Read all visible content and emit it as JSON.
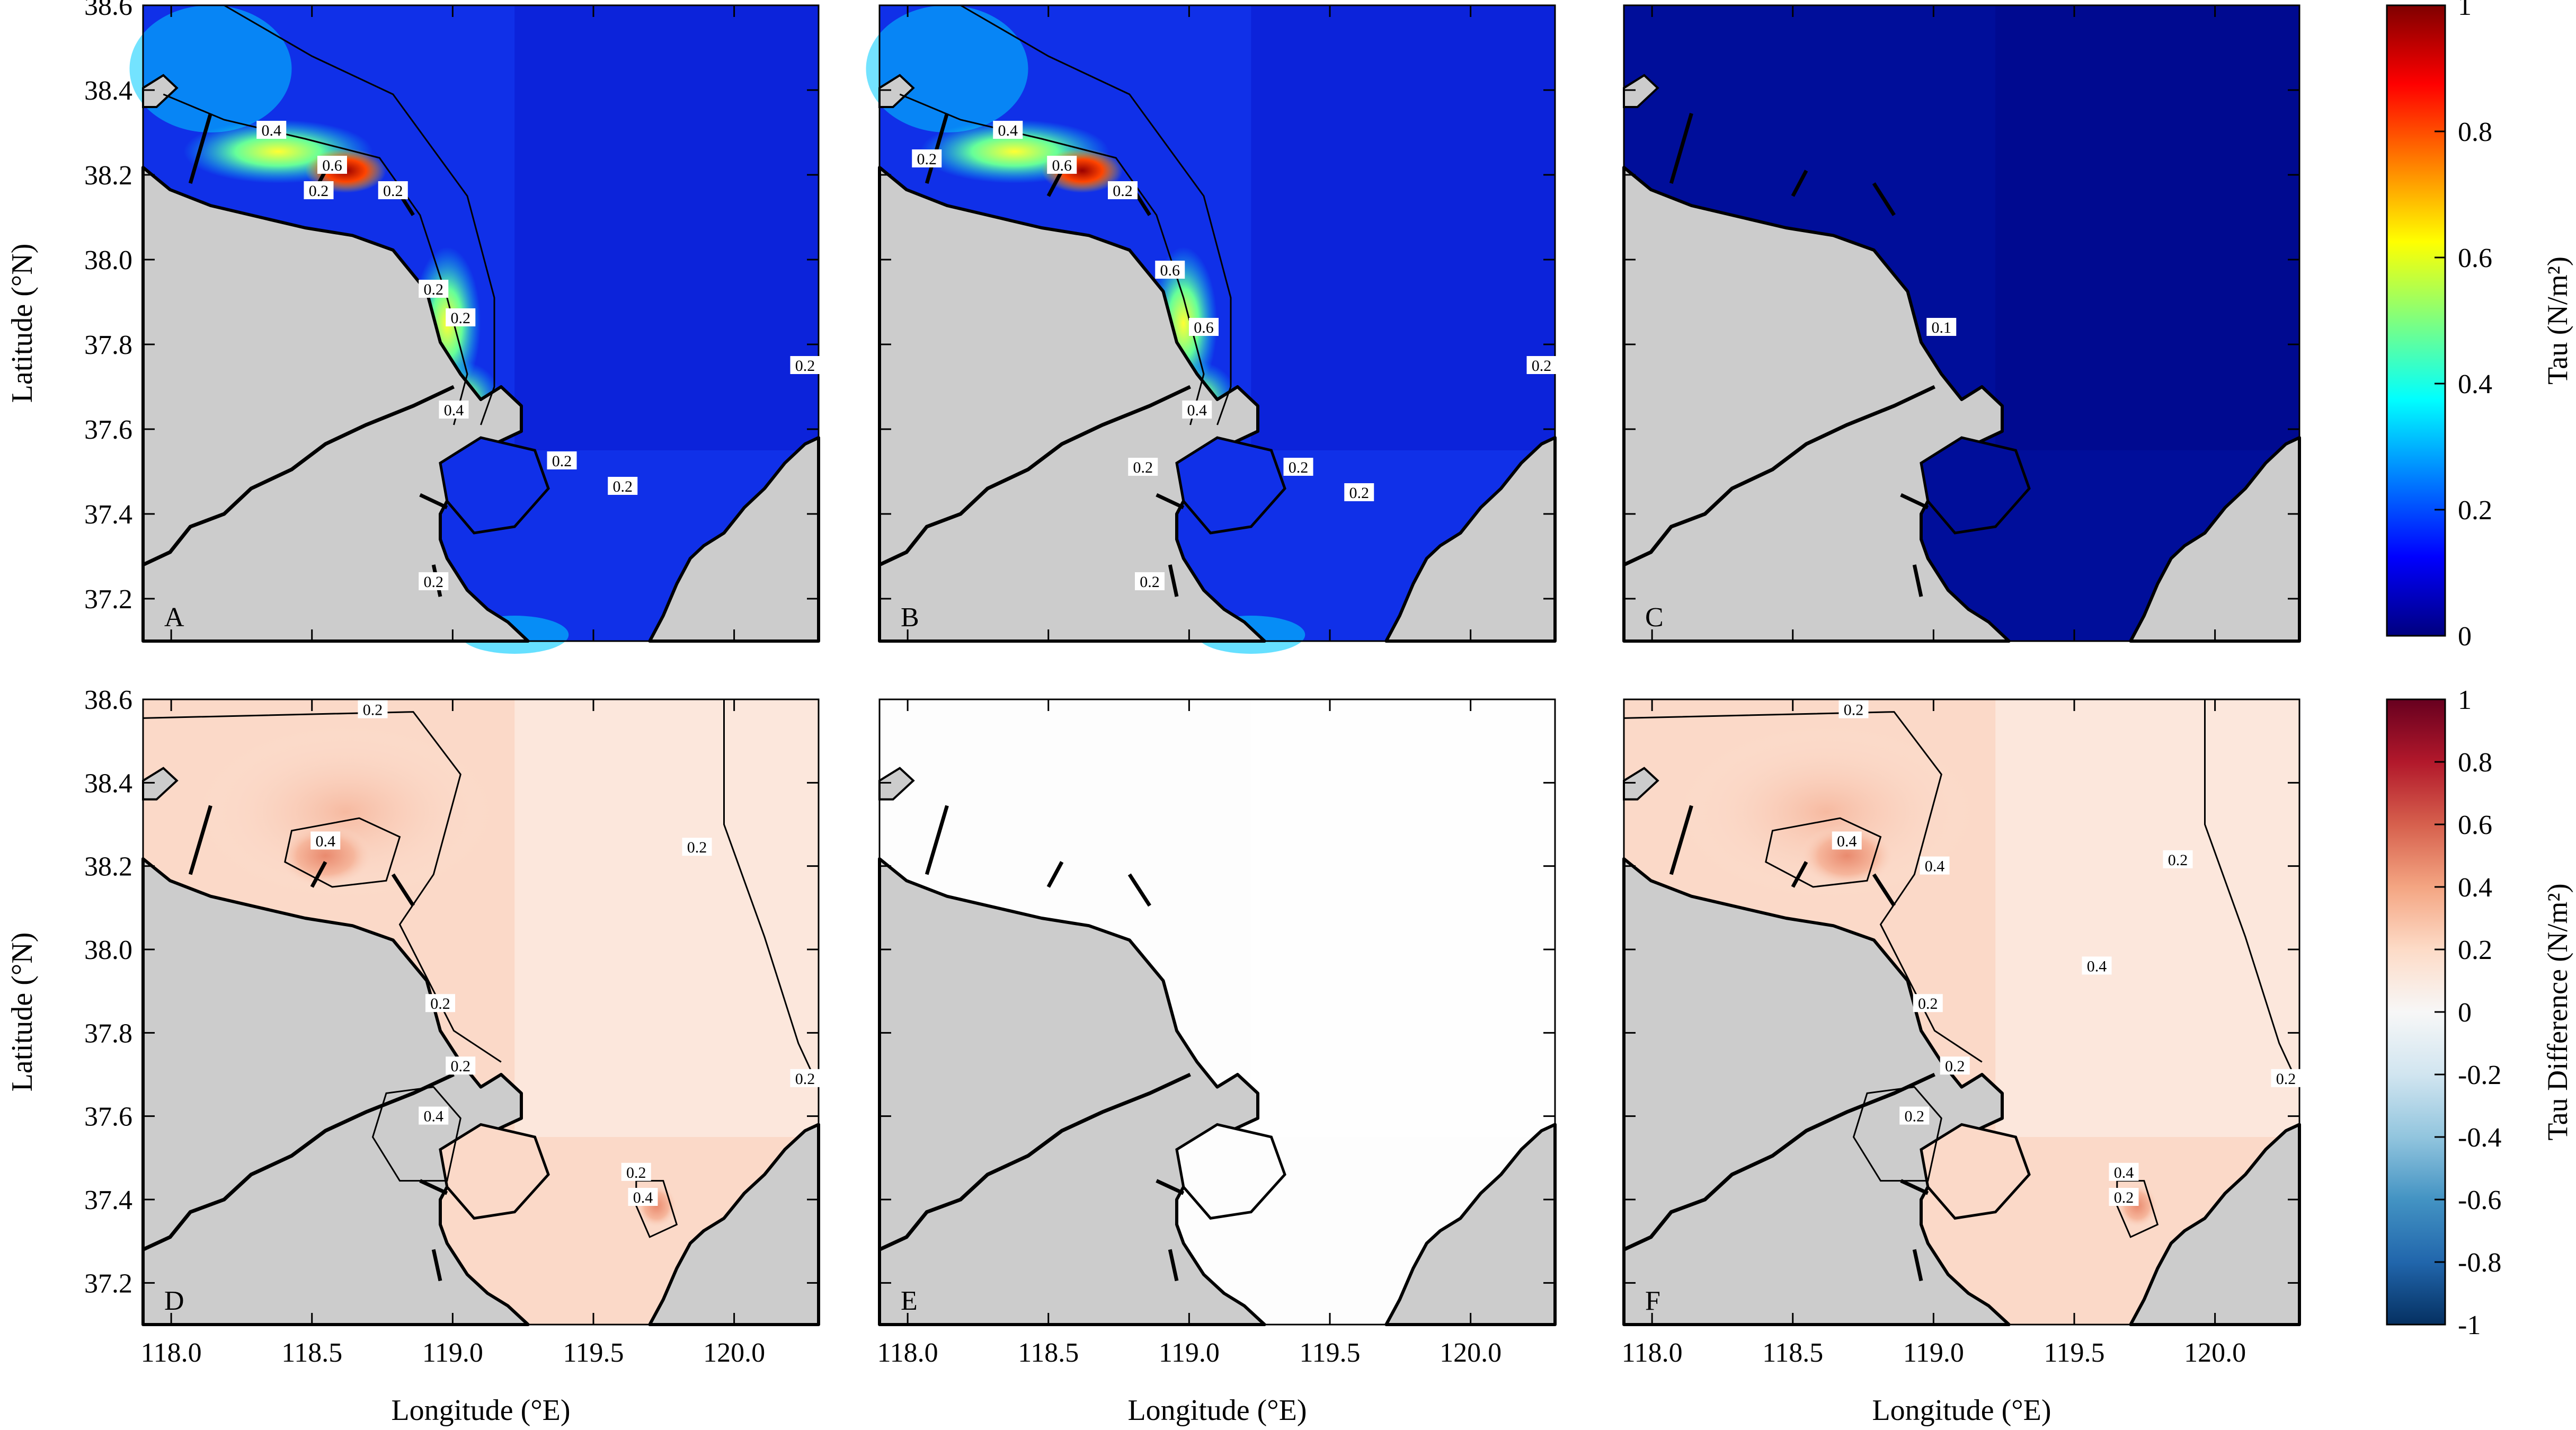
{
  "chart_data": [
    {
      "type": "heatmap",
      "panels": [
        {
          "letter": "A",
          "contour_labels": [
            "0.4",
            "0.6",
            "0.2",
            "0.2",
            "0.2",
            "0.2",
            "0.4",
            "0.2",
            "0.2",
            "0.2",
            "0.2"
          ]
        },
        {
          "letter": "B",
          "contour_labels": [
            "0.4",
            "0.2",
            "0.6",
            "0.2",
            "0.6",
            "0.6",
            "0.4",
            "0.2",
            "0.2",
            "0.2",
            "0.2",
            "0.2"
          ]
        },
        {
          "letter": "C",
          "contour_labels": [
            "0.1"
          ]
        }
      ],
      "colorbar": {
        "title": "Tau (N/m²)",
        "range": [
          0,
          1
        ],
        "ticks": [
          "0",
          "0.2",
          "0.4",
          "0.6",
          "0.8",
          "1"
        ],
        "colors": [
          "#00007f",
          "#0000ff",
          "#007fff",
          "#00ffff",
          "#7fff7f",
          "#ffff00",
          "#ff7f00",
          "#ff0000",
          "#7f0000"
        ]
      }
    },
    {
      "type": "heatmap",
      "panels": [
        {
          "letter": "D",
          "contour_labels": [
            "0.2",
            "0.4",
            "0.2",
            "0.2",
            "0.2",
            "0.4",
            "0.2",
            "0.4",
            "0.2"
          ]
        },
        {
          "letter": "E",
          "contour_labels": []
        },
        {
          "letter": "F",
          "contour_labels": [
            "0.2",
            "0.4",
            "0.4",
            "0.2",
            "0.2",
            "0.2",
            "0.4",
            "0.2",
            "0.4",
            "0.2",
            "0.2"
          ]
        }
      ],
      "colorbar": {
        "title": "Tau Difference (N/m²)",
        "range": [
          -1,
          1
        ],
        "ticks": [
          "-1",
          "-0.8",
          "-0.6",
          "-0.4",
          "-0.2",
          "0",
          "0.2",
          "0.4",
          "0.6",
          "0.8",
          "1"
        ],
        "colors": [
          "#053061",
          "#2166ac",
          "#4393c3",
          "#92c5de",
          "#d1e5f0",
          "#f7f7f7",
          "#fddbc7",
          "#f4a582",
          "#d6604d",
          "#b2182b",
          "#67001f"
        ]
      }
    }
  ],
  "axes": {
    "xlabel": "Longitude (°E)",
    "ylabel": "Latitude (°N)",
    "xlim": [
      117.9,
      120.3
    ],
    "ylim": [
      37.1,
      38.6
    ],
    "x_ticks": [
      "118.0",
      "118.5",
      "119.0",
      "119.5",
      "120.0"
    ],
    "y_ticks": [
      "37.2",
      "37.4",
      "37.6",
      "37.8",
      "38.0",
      "38.2",
      "38.4",
      "38.6"
    ]
  },
  "land_color": "#cccccc"
}
